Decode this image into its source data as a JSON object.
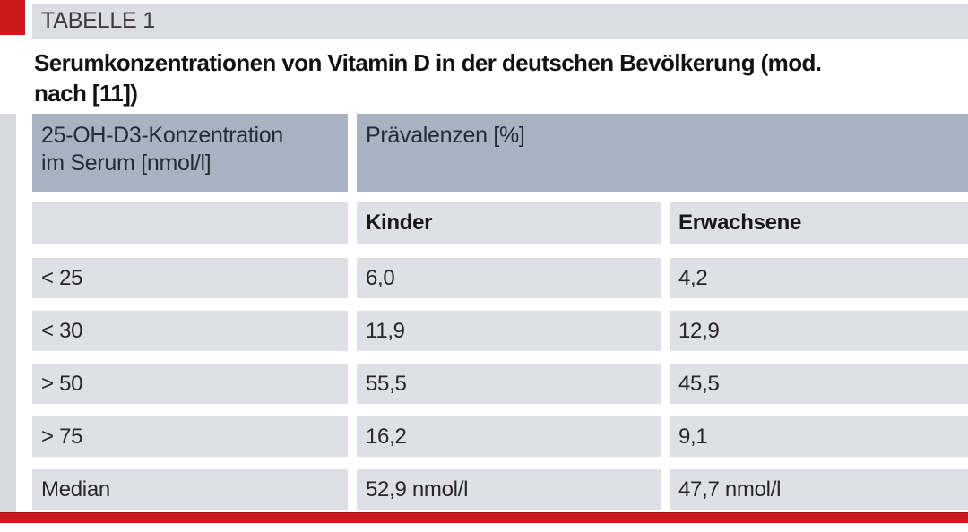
{
  "kicker": {
    "label": "TABELLE 1"
  },
  "heading": {
    "lines": [
      "Serumkonzentrationen von Vitamin D in der deutschen Bevölkerung (mod.",
      "nach [11])"
    ],
    "full_title": "Serumkonzentrationen von Vitamin D in der deutschen Bevölkerung (mod. nach [11])"
  },
  "table": {
    "col1_header_line1": "25-OH-D3-Konzentration",
    "col1_header_line2": "im Serum [nmol/l]",
    "group_header": "Prävalenzen [%]",
    "subheaders": {
      "kinder": "Kinder",
      "erwachsene": "Erwachsene"
    },
    "rows": [
      {
        "label": "< 25",
        "kinder": "6,0",
        "erwachsene": "4,2"
      },
      {
        "label": "< 30",
        "kinder": "11,9",
        "erwachsene": "12,9"
      },
      {
        "label": "> 50",
        "kinder": "55,5",
        "erwachsene": "45,5"
      },
      {
        "label": "> 75",
        "kinder": "16,2",
        "erwachsene": "9,1"
      },
      {
        "label": "Median",
        "kinder": "52,9 nmol/l",
        "erwachsene": "47,7 nmol/l"
      }
    ]
  },
  "chart_data": {
    "type": "table",
    "title": "Serumkonzentrationen von Vitamin D in der deutschen Bevölkerung (mod. nach [11])",
    "columns": [
      "25-OH-D3-Konzentration im Serum [nmol/l]",
      "Kinder",
      "Erwachsene"
    ],
    "group_header": "Prävalenzen [%]",
    "rows": [
      [
        "< 25",
        "6,0",
        "4,2"
      ],
      [
        "< 30",
        "11,9",
        "12,9"
      ],
      [
        "> 50",
        "55,5",
        "45,5"
      ],
      [
        "> 75",
        "16,2",
        "9,1"
      ],
      [
        "Median",
        "52,9 nmol/l",
        "47,7 nmol/l"
      ]
    ]
  },
  "colors": {
    "accent_red": "#cd191c",
    "kicker_bar_gray": "#dcdde2",
    "header_blue_gray": "#a7b3c1",
    "cell_gray": "#dee0e6",
    "left_strip_gray": "#d7d8dc",
    "text_dark": "#1d1d20"
  }
}
